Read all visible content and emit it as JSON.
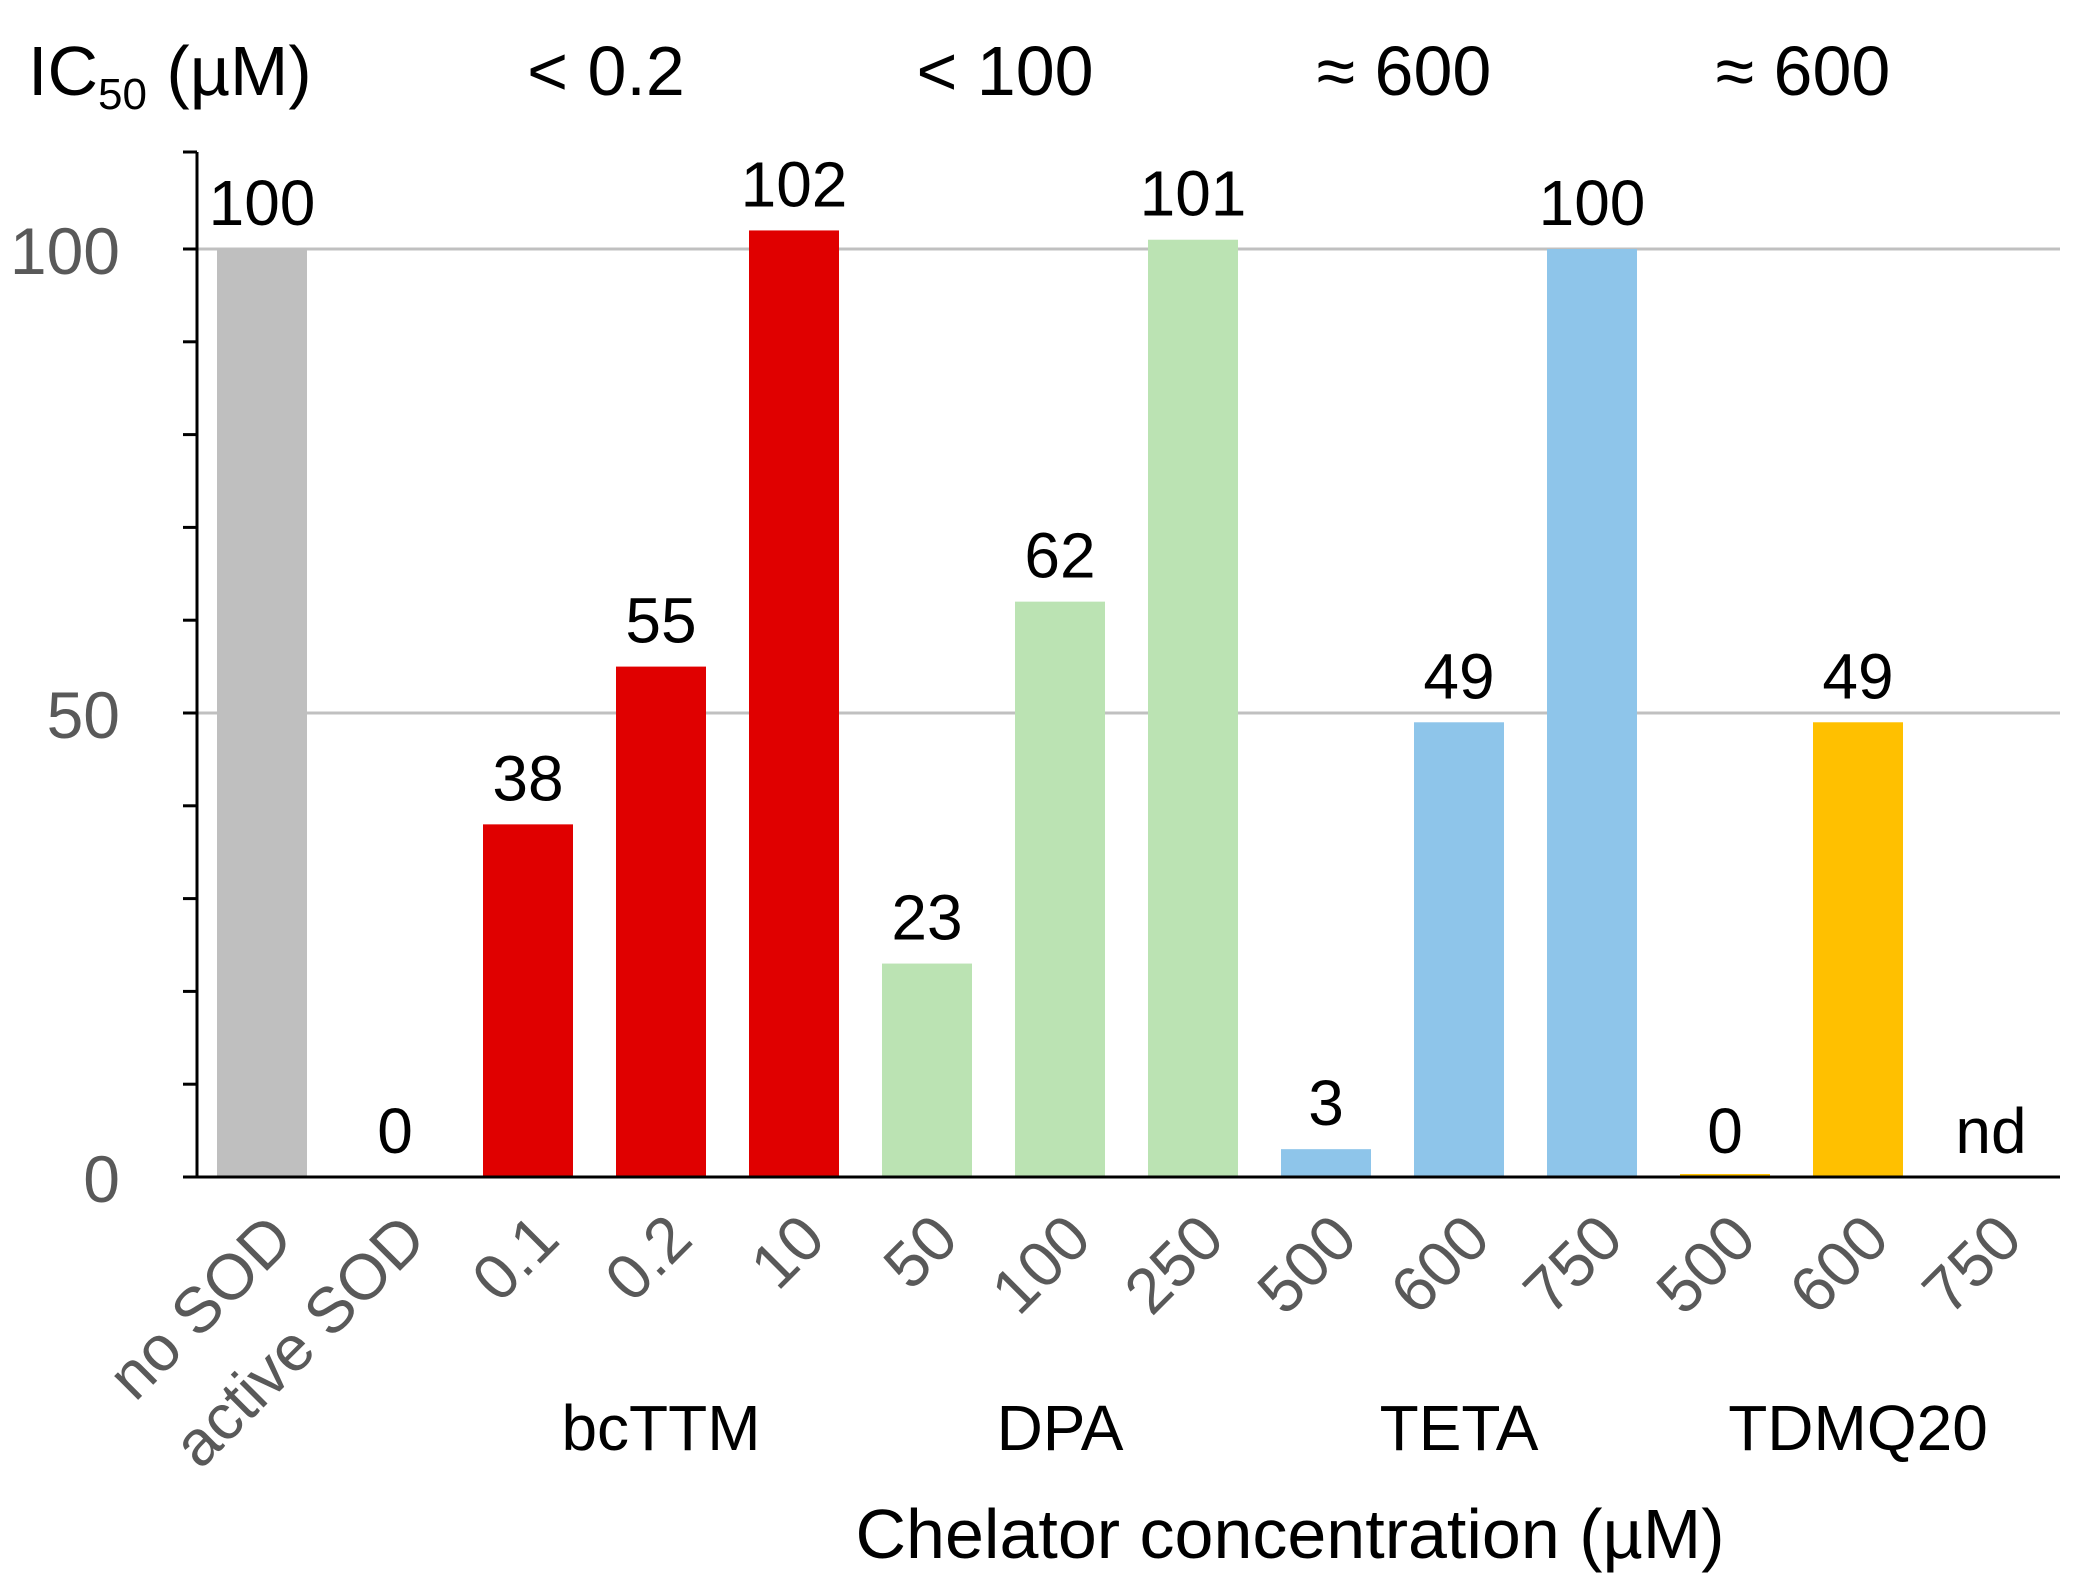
{
  "chart_data": {
    "type": "bar",
    "ic50_header": {
      "label_main": "IC",
      "label_sub": "50",
      "label_unit": " (µM)",
      "groups": [
        {
          "text": "< 0.2",
          "first_bar": 2,
          "last_bar": 4
        },
        {
          "text": "< 100",
          "first_bar": 5,
          "last_bar": 7
        },
        {
          "text": "≈ 600",
          "first_bar": 8,
          "last_bar": 10
        },
        {
          "text": "≈ 600",
          "first_bar": 11,
          "last_bar": 13
        }
      ]
    },
    "categories": [
      "no SOD",
      "active SOD",
      "0.1",
      "0.2",
      "10",
      "50",
      "100",
      "250",
      "500",
      "600",
      "750",
      "500",
      "600",
      "750"
    ],
    "values": [
      100,
      0,
      38,
      55,
      102,
      23,
      62,
      101,
      3,
      49,
      100,
      0,
      49,
      null
    ],
    "data_labels": [
      "100",
      "0",
      "38",
      "55",
      "102",
      "23",
      "62",
      "101",
      "3",
      "49",
      "100",
      "0",
      "49",
      "nd"
    ],
    "colors": [
      "#bfbfbf",
      "#bfbfbf",
      "#e00000",
      "#e00000",
      "#e00000",
      "#bbe3b3",
      "#bbe3b3",
      "#bbe3b3",
      "#8ec5ea",
      "#8ec5ea",
      "#8ec5ea",
      "#ffc000",
      "#ffc000",
      "#ffc000"
    ],
    "groups": [
      {
        "name": "bcTTM",
        "first_bar": 2,
        "last_bar": 4
      },
      {
        "name": "DPA",
        "first_bar": 5,
        "last_bar": 7
      },
      {
        "name": "TETA",
        "first_bar": 8,
        "last_bar": 10
      },
      {
        "name": "TDMQ20",
        "first_bar": 11,
        "last_bar": 13
      }
    ],
    "xlabel": "Chelator concentration (µM)",
    "ylabel": "",
    "ylim": [
      0,
      105
    ],
    "yticks": [
      0,
      50,
      100
    ],
    "grid": true,
    "gridline_color": "#c0c0c0",
    "tick_label_color": "#595959",
    "text_color": "#000000"
  }
}
